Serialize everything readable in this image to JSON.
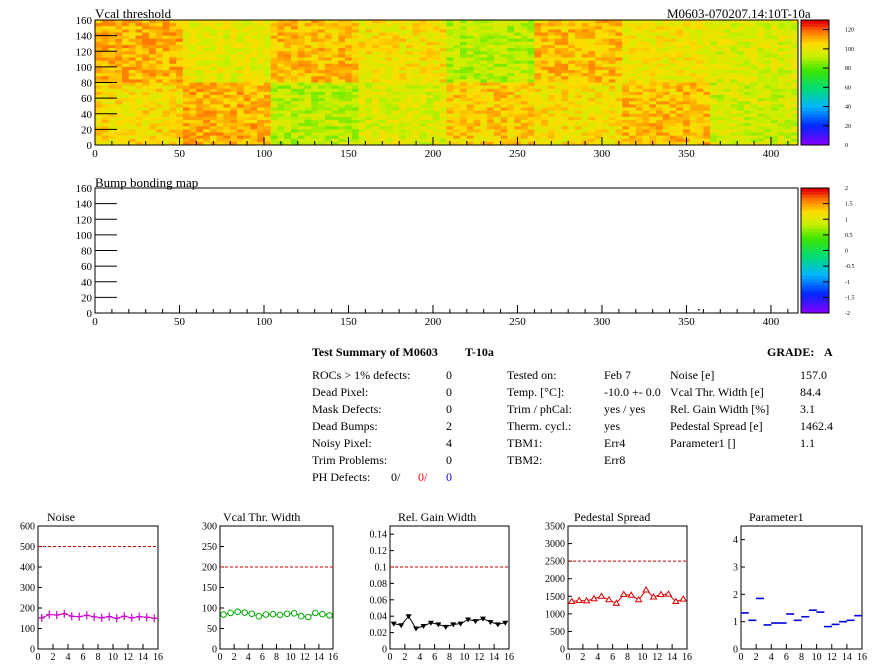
{
  "header": {
    "right_title": "M0603-070207.14:10T-10a"
  },
  "charts": {
    "vcal": {
      "title": "Vcal threshold"
    },
    "bump": {
      "title": "Bump bonding map"
    }
  },
  "summary": {
    "title": "Test Summary of M0603",
    "test": "T-10a",
    "grade_label": "GRADE:",
    "grade": "A",
    "left": [
      {
        "label": "ROCs > 1% defects:",
        "value": "0"
      },
      {
        "label": "Dead Pixel:",
        "value": "0"
      },
      {
        "label": "Mask Defects:",
        "value": "0"
      },
      {
        "label": "Dead Bumps:",
        "value": "2"
      },
      {
        "label": "Noisy Pixel:",
        "value": "4"
      },
      {
        "label": "Trim Problems:",
        "value": "0"
      }
    ],
    "ph_label": "PH Defects:",
    "ph_values": [
      "0/",
      "0/",
      "0"
    ],
    "mid": [
      {
        "label": "Tested on:",
        "value": "Feb 7"
      },
      {
        "label": "Temp. [°C]:",
        "value": "-10.0 +- 0.0"
      },
      {
        "label": "Trim / phCal:",
        "value": "yes / yes"
      },
      {
        "label": "Therm. cycl.:",
        "value": "yes"
      },
      {
        "label": "TBM1:",
        "value": "Err4"
      },
      {
        "label": "TBM2:",
        "value": "Err8"
      }
    ],
    "right": [
      {
        "label": "Noise [e]",
        "value": "157.0"
      },
      {
        "label": "Vcal Thr. Width [e]",
        "value": "84.4"
      },
      {
        "label": "Rel. Gain Width [%]",
        "value": "3.1"
      },
      {
        "label": "Pedestal Spread [e]",
        "value": "1462.4"
      },
      {
        "label": "Parameter1 []",
        "value": "1.1"
      }
    ]
  },
  "colors": {
    "magenta": "#cc00cc",
    "green": "#00aa00",
    "black": "#000000",
    "red": "#dd0000",
    "blue": "#0000dd",
    "limit": "#cc0000"
  },
  "chart_data": [
    {
      "type": "heatmap",
      "title": "Vcal threshold",
      "x_ticks": [
        0,
        50,
        100,
        150,
        200,
        250,
        300,
        350,
        400
      ],
      "y_ticks": [
        0,
        20,
        40,
        60,
        80,
        100,
        120,
        140,
        160
      ],
      "xlim": [
        0,
        416
      ],
      "ylim": [
        0,
        160
      ],
      "rows": 2,
      "cols": 8,
      "roc_levels": [
        [
          105,
          112,
          92,
          98,
          108,
          104,
          110,
          96
        ],
        [
          112,
          100,
          110,
          104,
          92,
          110,
          102,
          98
        ]
      ],
      "colorbar_ticks": [
        0,
        20,
        40,
        60,
        80,
        100,
        120
      ],
      "color_range": [
        0,
        130
      ]
    },
    {
      "type": "heatmap",
      "title": "Bump bonding map",
      "x_ticks": [
        0,
        50,
        100,
        150,
        200,
        250,
        300,
        350,
        400
      ],
      "y_ticks": [
        0,
        20,
        40,
        60,
        80,
        100,
        120,
        140,
        160
      ],
      "xlim": [
        0,
        416
      ],
      "ylim": [
        0,
        160
      ],
      "points": [
        [
          357,
          5
        ]
      ],
      "colorbar_ticks": [
        -2,
        -1.5,
        -1,
        -0.5,
        0,
        0.5,
        1,
        1.5,
        2
      ],
      "color_range": [
        -2,
        2
      ]
    },
    {
      "type": "line",
      "title": "Noise",
      "x": [
        0,
        1,
        2,
        3,
        4,
        5,
        6,
        7,
        8,
        9,
        10,
        11,
        12,
        13,
        14,
        15
      ],
      "values": [
        152,
        168,
        166,
        172,
        160,
        158,
        164,
        157,
        152,
        158,
        150,
        160,
        152,
        158,
        155,
        150
      ],
      "ylim": [
        0,
        600
      ],
      "yticks": [
        0,
        100,
        200,
        300,
        400,
        500,
        600
      ],
      "ytick_labels": [
        "0",
        "100",
        "200",
        "300",
        "400",
        "500",
        "600"
      ],
      "limit": 500,
      "marker": "plus",
      "color": "#cc00cc"
    },
    {
      "type": "line",
      "title": "Vcal Thr. Width",
      "x": [
        0,
        1,
        2,
        3,
        4,
        5,
        6,
        7,
        8,
        9,
        10,
        11,
        12,
        13,
        14,
        15
      ],
      "values": [
        84,
        88,
        91,
        89,
        86,
        80,
        84,
        85,
        83,
        86,
        87,
        80,
        78,
        88,
        85,
        82
      ],
      "ylim": [
        0,
        300
      ],
      "yticks": [
        0,
        50,
        100,
        150,
        200,
        250,
        300
      ],
      "ytick_labels": [
        "0",
        "50",
        "100",
        "150",
        "200",
        "250",
        "300"
      ],
      "limit": 200,
      "marker": "circle",
      "color": "#00aa00"
    },
    {
      "type": "line",
      "title": "Rel. Gain Width",
      "x": [
        0,
        1,
        2,
        3,
        4,
        5,
        6,
        7,
        8,
        9,
        10,
        11,
        12,
        13,
        14,
        15
      ],
      "values": [
        0.031,
        0.029,
        0.04,
        0.025,
        0.028,
        0.032,
        0.03,
        0.027,
        0.03,
        0.031,
        0.036,
        0.034,
        0.037,
        0.033,
        0.03,
        0.032
      ],
      "ylim": [
        0,
        0.15
      ],
      "yticks": [
        0,
        0.02,
        0.04,
        0.06,
        0.08,
        0.1,
        0.12,
        0.14
      ],
      "ytick_labels": [
        "0",
        "0.02",
        "0.04",
        "0.06",
        "0.08",
        "0.1",
        "0.12",
        "0.14"
      ],
      "limit": 0.1,
      "marker": "triangle",
      "color": "#000000"
    },
    {
      "type": "line",
      "title": "Pedestal Spread",
      "x": [
        0,
        1,
        2,
        3,
        4,
        5,
        6,
        7,
        8,
        9,
        10,
        11,
        12,
        13,
        14,
        15
      ],
      "values": [
        1350,
        1380,
        1370,
        1430,
        1500,
        1400,
        1300,
        1550,
        1530,
        1400,
        1680,
        1480,
        1550,
        1560,
        1350,
        1420
      ],
      "ylim": [
        0,
        3500
      ],
      "yticks": [
        0,
        500,
        1000,
        1500,
        2000,
        2500,
        3000,
        3500
      ],
      "ytick_labels": [
        "0",
        "500",
        "1000",
        "1500",
        "2000",
        "2500",
        "3000",
        "3500"
      ],
      "limit": 2500,
      "marker": "triangle-open",
      "color": "#dd0000"
    },
    {
      "type": "scatter",
      "title": "Parameter1",
      "x": [
        0,
        1,
        2,
        3,
        4,
        5,
        6,
        7,
        8,
        9,
        10,
        11,
        12,
        13,
        14,
        15
      ],
      "values": [
        1.32,
        1.05,
        1.85,
        0.88,
        0.95,
        0.95,
        1.28,
        1.05,
        1.18,
        1.42,
        1.35,
        0.82,
        0.9,
        1.0,
        1.05,
        1.22
      ],
      "ylim": [
        0,
        4.5
      ],
      "yticks": [
        0,
        1,
        2,
        3,
        4
      ],
      "ytick_labels": [
        "0",
        "1",
        "2",
        "3",
        "4"
      ],
      "marker": "dash",
      "color": "#0000dd"
    }
  ]
}
